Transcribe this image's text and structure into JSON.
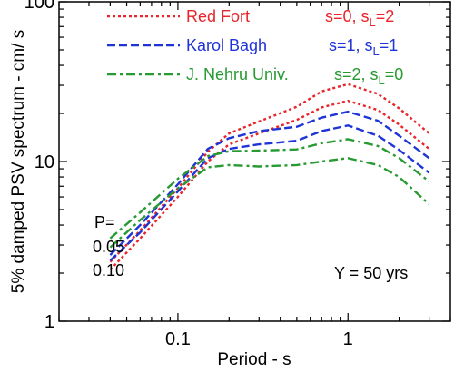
{
  "chart_data": {
    "type": "line",
    "xscale": "log",
    "yscale": "log",
    "xlim": [
      0.02,
      4
    ],
    "ylim": [
      1,
      100
    ],
    "xlabel": "Period - s",
    "ylabel": "5% damped PSV spectrum - cm/ s",
    "x_ticks": [
      {
        "value": 0.1,
        "label": "0.1"
      },
      {
        "value": 1,
        "label": "1"
      }
    ],
    "y_ticks": [
      {
        "value": 1,
        "label": "1"
      },
      {
        "value": 10,
        "label": "10"
      },
      {
        "value": 100,
        "label": "100"
      }
    ],
    "grid": false,
    "legend_position": "top-right",
    "legend": [
      {
        "site": "Red Fort",
        "param_main": "s=0, s",
        "param_sub": "L",
        "param_tail": "=2",
        "color": "#e8252a",
        "dash": "dot"
      },
      {
        "site": "Karol Bagh",
        "param_main": "s=1, s",
        "param_sub": "L",
        "param_tail": "=1",
        "color": "#1f34d6",
        "dash": "dash"
      },
      {
        "site": "J. Nehru Univ.",
        "param_main": "s=2, s",
        "param_sub": "L",
        "param_tail": "=0",
        "color": "#279a32",
        "dash": "dashdot"
      }
    ],
    "annotations": {
      "p_label": "P=",
      "p_upper": "0.05",
      "p_lower": "0.10",
      "y_label": "Y = 50 yrs"
    },
    "series": [
      {
        "group": 0,
        "p": 0.05,
        "color": "#e8252a",
        "dash": "dot",
        "points": [
          [
            0.04,
            2.35
          ],
          [
            0.06,
            3.7
          ],
          [
            0.1,
            6.8
          ],
          [
            0.15,
            11.5
          ],
          [
            0.2,
            15.0
          ],
          [
            0.3,
            17.8
          ],
          [
            0.5,
            22.0
          ],
          [
            0.7,
            27.5
          ],
          [
            1.0,
            30.5
          ],
          [
            1.5,
            26.5
          ],
          [
            2.0,
            21.5
          ],
          [
            3.0,
            15.0
          ]
        ]
      },
      {
        "group": 0,
        "p": 0.1,
        "color": "#e8252a",
        "dash": "dot",
        "points": [
          [
            0.04,
            2.1
          ],
          [
            0.06,
            3.3
          ],
          [
            0.1,
            6.0
          ],
          [
            0.15,
            10.0
          ],
          [
            0.2,
            12.8
          ],
          [
            0.3,
            15.0
          ],
          [
            0.5,
            18.2
          ],
          [
            0.7,
            21.8
          ],
          [
            1.0,
            24.0
          ],
          [
            1.5,
            21.0
          ],
          [
            2.0,
            17.0
          ],
          [
            3.0,
            12.0
          ]
        ]
      },
      {
        "group": 1,
        "p": 0.05,
        "color": "#1f34d6",
        "dash": "dash",
        "points": [
          [
            0.04,
            2.6
          ],
          [
            0.06,
            4.0
          ],
          [
            0.1,
            7.2
          ],
          [
            0.15,
            12.0
          ],
          [
            0.2,
            14.0
          ],
          [
            0.3,
            15.5
          ],
          [
            0.5,
            16.5
          ],
          [
            0.7,
            18.8
          ],
          [
            1.0,
            20.5
          ],
          [
            1.5,
            18.0
          ],
          [
            2.0,
            14.5
          ],
          [
            3.0,
            10.5
          ]
        ]
      },
      {
        "group": 1,
        "p": 0.1,
        "color": "#1f34d6",
        "dash": "dash",
        "points": [
          [
            0.04,
            2.4
          ],
          [
            0.06,
            3.6
          ],
          [
            0.1,
            6.5
          ],
          [
            0.15,
            10.5
          ],
          [
            0.2,
            12.0
          ],
          [
            0.3,
            12.8
          ],
          [
            0.5,
            13.5
          ],
          [
            0.7,
            15.5
          ],
          [
            1.0,
            16.8
          ],
          [
            1.5,
            14.5
          ],
          [
            2.0,
            11.8
          ],
          [
            3.0,
            8.5
          ]
        ]
      },
      {
        "group": 2,
        "p": 0.05,
        "color": "#279a32",
        "dash": "dashdot",
        "points": [
          [
            0.04,
            3.3
          ],
          [
            0.06,
            4.8
          ],
          [
            0.1,
            7.8
          ],
          [
            0.15,
            10.8
          ],
          [
            0.2,
            11.6
          ],
          [
            0.3,
            11.7
          ],
          [
            0.5,
            11.9
          ],
          [
            0.7,
            13.0
          ],
          [
            1.0,
            13.8
          ],
          [
            1.5,
            12.5
          ],
          [
            2.0,
            10.5
          ],
          [
            3.0,
            7.5
          ]
        ]
      },
      {
        "group": 2,
        "p": 0.1,
        "color": "#279a32",
        "dash": "dashdot",
        "points": [
          [
            0.04,
            2.9
          ],
          [
            0.06,
            4.3
          ],
          [
            0.1,
            6.8
          ],
          [
            0.15,
            9.2
          ],
          [
            0.2,
            9.5
          ],
          [
            0.3,
            9.3
          ],
          [
            0.5,
            9.5
          ],
          [
            0.7,
            10.0
          ],
          [
            1.0,
            10.5
          ],
          [
            1.5,
            9.5
          ],
          [
            2.0,
            8.0
          ],
          [
            3.0,
            5.4
          ]
        ]
      }
    ]
  }
}
